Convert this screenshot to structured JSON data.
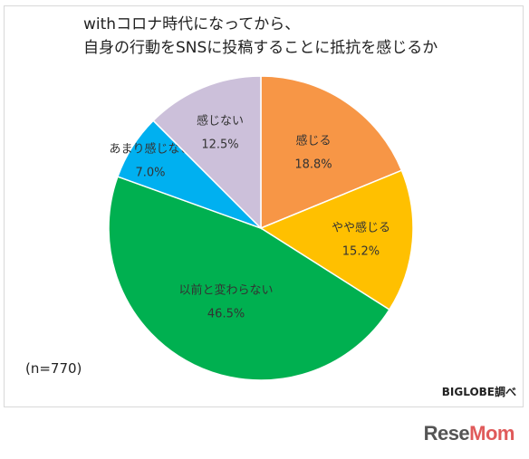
{
  "chart_data": {
    "type": "pie",
    "title_lines": [
      "withコロナ時代になってから、",
      "自身の行動をSNSに投稿することに抵抗を感じるか"
    ],
    "slices": [
      {
        "label": "感じる",
        "value": 18.8,
        "display": "18.8%",
        "color": "#F79646"
      },
      {
        "label": "やや感じる",
        "value": 15.2,
        "display": "15.2%",
        "color": "#FFC000"
      },
      {
        "label": "以前と変わらない",
        "value": 46.5,
        "display": "46.5%",
        "color": "#00B050"
      },
      {
        "label": "あまり感じない",
        "value": 7.0,
        "display": "7.0%",
        "color": "#00B0F0"
      },
      {
        "label": "感じない",
        "value": 12.5,
        "display": "12.5%",
        "color": "#CCC0DA"
      }
    ],
    "note": "(n=770)",
    "source": "BIGLOBE調べ"
  },
  "watermark": {
    "text_a": "Rese",
    "text_b": "Mom"
  }
}
